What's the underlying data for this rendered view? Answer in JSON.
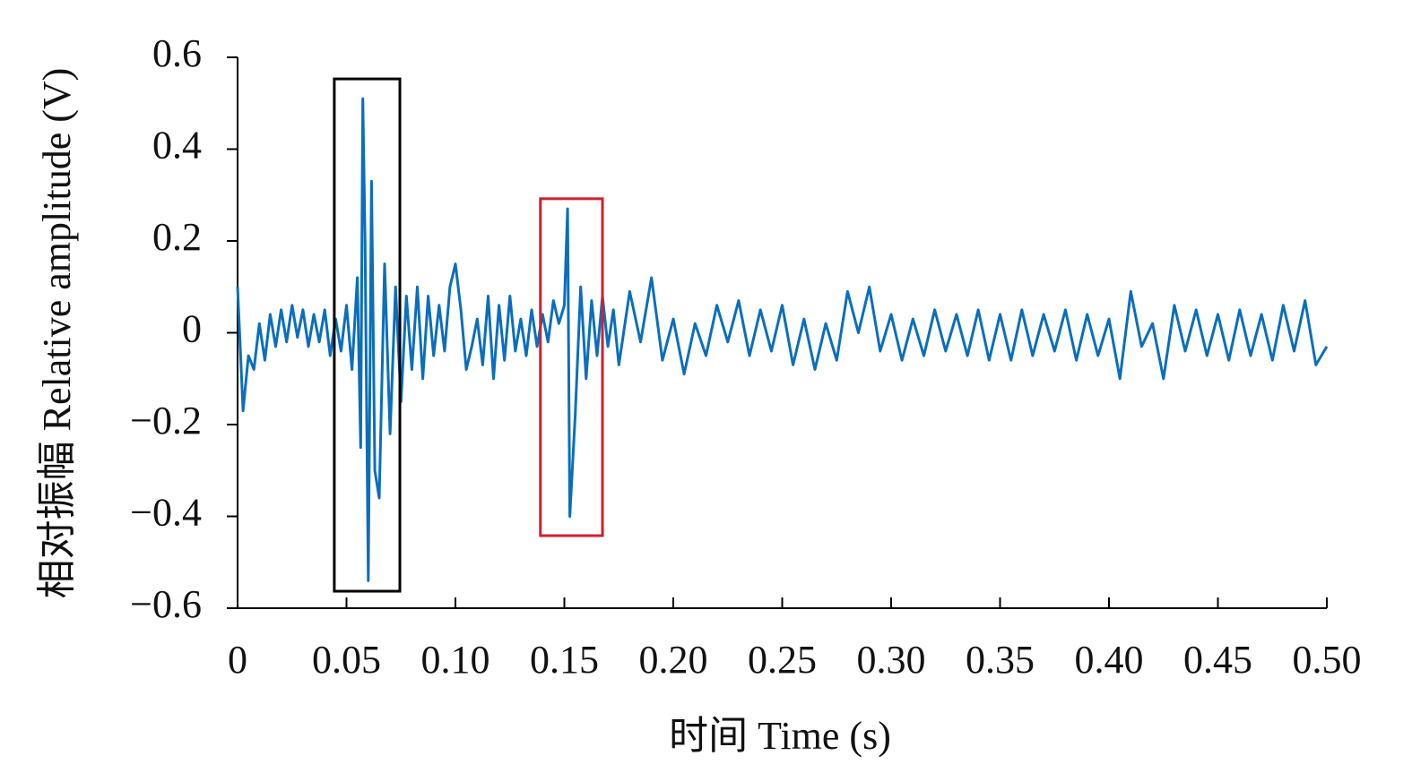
{
  "chart_data": {
    "type": "line",
    "xlabel": "时间 Time (s)",
    "ylabel": "相对振幅 Relative amplitude (V)",
    "color": "#0a6ebd",
    "x": [
      0,
      0.0025,
      0.005,
      0.0075,
      0.01,
      0.0125,
      0.015,
      0.0175,
      0.02,
      0.0225,
      0.025,
      0.0275,
      0.03,
      0.0325,
      0.035,
      0.0375,
      0.04,
      0.0425,
      0.045,
      0.0475,
      0.05,
      0.0525,
      0.055,
      0.0565,
      0.0575,
      0.0585,
      0.06,
      0.0615,
      0.063,
      0.065,
      0.0675,
      0.07,
      0.0725,
      0.075,
      0.0775,
      0.08,
      0.0825,
      0.085,
      0.0875,
      0.09,
      0.0925,
      0.095,
      0.0975,
      0.1,
      0.1025,
      0.105,
      0.1075,
      0.11,
      0.1125,
      0.115,
      0.1175,
      0.12,
      0.1225,
      0.125,
      0.1275,
      0.13,
      0.1325,
      0.135,
      0.1375,
      0.14,
      0.1425,
      0.145,
      0.1475,
      0.15,
      0.1515,
      0.1525,
      0.155,
      0.1575,
      0.16,
      0.1625,
      0.165,
      0.1675,
      0.17,
      0.1725,
      0.175,
      0.18,
      0.185,
      0.19,
      0.195,
      0.2,
      0.205,
      0.21,
      0.215,
      0.22,
      0.225,
      0.23,
      0.235,
      0.24,
      0.245,
      0.25,
      0.255,
      0.26,
      0.265,
      0.27,
      0.275,
      0.28,
      0.285,
      0.29,
      0.295,
      0.3,
      0.305,
      0.31,
      0.315,
      0.32,
      0.325,
      0.33,
      0.335,
      0.34,
      0.345,
      0.35,
      0.355,
      0.36,
      0.365,
      0.37,
      0.375,
      0.38,
      0.385,
      0.39,
      0.395,
      0.4,
      0.405,
      0.41,
      0.415,
      0.42,
      0.425,
      0.43,
      0.435,
      0.44,
      0.445,
      0.45,
      0.455,
      0.46,
      0.465,
      0.47,
      0.475,
      0.48,
      0.485,
      0.49,
      0.495,
      0.5
    ],
    "values": [
      0.1,
      -0.17,
      -0.05,
      -0.08,
      0.02,
      -0.06,
      0.04,
      -0.03,
      0.05,
      -0.02,
      0.06,
      -0.01,
      0.05,
      -0.03,
      0.04,
      -0.02,
      0.05,
      -0.05,
      0.03,
      -0.04,
      0.06,
      -0.08,
      0.12,
      -0.25,
      0.51,
      0.2,
      -0.54,
      0.33,
      -0.3,
      -0.36,
      0.15,
      -0.22,
      0.1,
      -0.15,
      0.08,
      -0.08,
      0.1,
      -0.1,
      0.08,
      -0.05,
      0.06,
      -0.04,
      0.1,
      0.15,
      0.05,
      -0.08,
      -0.03,
      0.03,
      -0.07,
      0.08,
      -0.1,
      0.06,
      -0.06,
      0.08,
      -0.04,
      0.03,
      -0.05,
      0.05,
      -0.03,
      0.04,
      -0.02,
      0.07,
      0.02,
      0.06,
      0.27,
      -0.4,
      -0.18,
      0.1,
      -0.1,
      0.07,
      -0.05,
      0.08,
      -0.03,
      0.05,
      -0.07,
      0.09,
      -0.02,
      0.12,
      -0.06,
      0.03,
      -0.09,
      0.02,
      -0.05,
      0.06,
      -0.02,
      0.07,
      -0.05,
      0.05,
      -0.04,
      0.06,
      -0.07,
      0.03,
      -0.08,
      0.02,
      -0.06,
      0.09,
      0,
      0.1,
      -0.04,
      0.04,
      -0.06,
      0.03,
      -0.05,
      0.05,
      -0.04,
      0.04,
      -0.05,
      0.05,
      -0.06,
      0.04,
      -0.06,
      0.05,
      -0.05,
      0.04,
      -0.04,
      0.05,
      -0.06,
      0.04,
      -0.05,
      0.03,
      -0.1,
      0.09,
      -0.03,
      0.02,
      -0.1,
      0.06,
      -0.04,
      0.05,
      -0.05,
      0.04,
      -0.06,
      0.05,
      -0.05,
      0.04,
      -0.06,
      0.06,
      -0.04,
      0.07,
      -0.07,
      -0.03
    ],
    "xlim": [
      0,
      0.5
    ],
    "ylim": [
      -0.6,
      0.6
    ],
    "xticks": [
      0,
      0.05,
      {
        "value": 0.1,
        "label": "0.10"
      },
      0.15,
      {
        "value": 0.2,
        "label": "0.20"
      },
      0.25,
      {
        "value": 0.3,
        "label": "0.30"
      },
      0.35,
      {
        "value": 0.4,
        "label": "0.40"
      },
      0.45,
      {
        "value": 0.5,
        "label": "0.50"
      }
    ],
    "yticks": [
      {
        "value": -0.6,
        "label": "−0.6"
      },
      {
        "value": -0.4,
        "label": "−0.4"
      },
      {
        "value": -0.2,
        "label": "−0.2"
      },
      0,
      0.2,
      0.4,
      0.6
    ],
    "highlights": [
      {
        "xlim": [
          0.0444,
          0.0745
        ],
        "ylim": [
          -0.563,
          0.553
        ],
        "color": "#000000"
      },
      {
        "xlim": [
          0.139,
          0.1675
        ],
        "ylim": [
          -0.442,
          0.292
        ],
        "color": "#d0202e"
      }
    ]
  }
}
